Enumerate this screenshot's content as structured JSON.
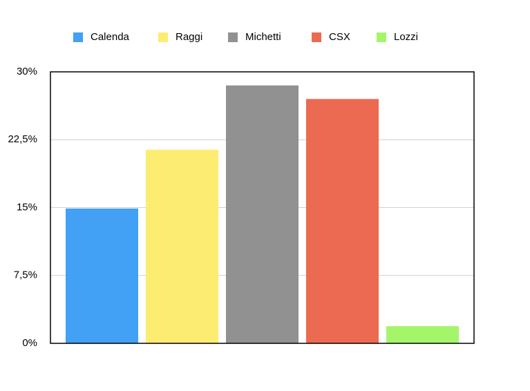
{
  "chart_data": {
    "type": "bar",
    "categories": [
      null
    ],
    "series": [
      {
        "name": "Calenda",
        "color": "#42a0f5",
        "values": [
          14.9
        ]
      },
      {
        "name": "Raggi",
        "color": "#fdec72",
        "values": [
          21.4
        ]
      },
      {
        "name": "Michetti",
        "color": "#919191",
        "values": [
          28.5
        ]
      },
      {
        "name": "CSX",
        "color": "#ec6a52",
        "values": [
          27.0
        ]
      },
      {
        "name": "Lozzi",
        "color": "#a5f56a",
        "values": [
          1.9
        ]
      }
    ],
    "ylim": [
      0,
      30
    ],
    "yticks": [
      {
        "value": 0,
        "label": "0%"
      },
      {
        "value": 7.5,
        "label": "7,5%"
      },
      {
        "value": 15,
        "label": "15%"
      },
      {
        "value": 22.5,
        "label": "22,5%"
      },
      {
        "value": 30,
        "label": "30%"
      }
    ],
    "grid": true,
    "legend": "top"
  }
}
